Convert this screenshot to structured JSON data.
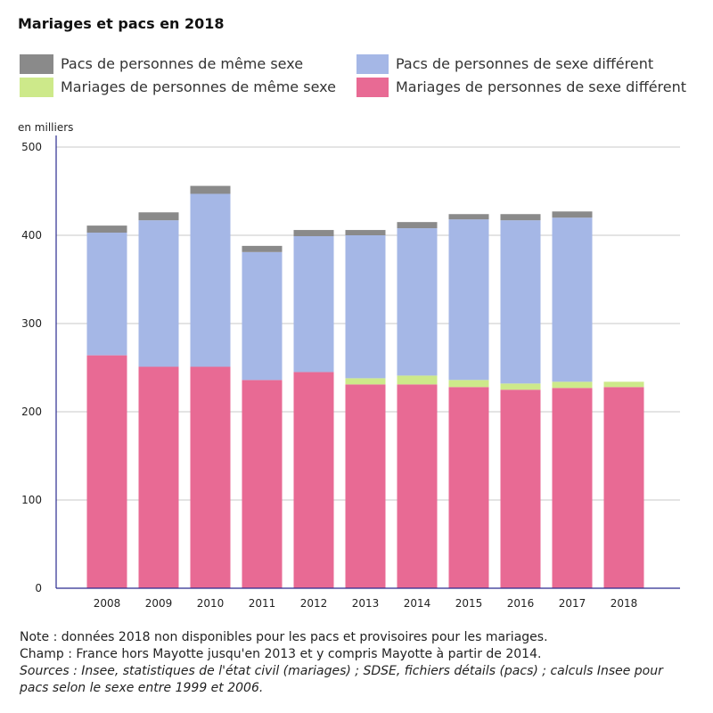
{
  "chart_data": {
    "type": "bar",
    "stacked": true,
    "title": "Mariages et pacs en 2018",
    "ylabel": "en milliers",
    "ylim": [
      0,
      500
    ],
    "yticks": [
      0,
      100,
      200,
      300,
      400,
      500
    ],
    "grid": true,
    "legend_position": "top",
    "categories": [
      "2008",
      "2009",
      "2010",
      "2011",
      "2012",
      "2013",
      "2014",
      "2015",
      "2016",
      "2017",
      "2018"
    ],
    "series": [
      {
        "name": "Mariages de personnes de sexe différent",
        "color": "#e86a94",
        "values": [
          264,
          251,
          251,
          236,
          245,
          231,
          231,
          228,
          225,
          227,
          228
        ]
      },
      {
        "name": "Mariages de personnes de même sexe",
        "color": "#cde98a",
        "values": [
          null,
          null,
          null,
          null,
          null,
          7,
          10,
          8,
          7,
          7,
          6
        ]
      },
      {
        "name": "Pacs de personnes de sexe différent",
        "color": "#a5b7e6",
        "values": [
          139,
          166,
          196,
          145,
          154,
          162,
          167,
          182,
          185,
          186,
          null
        ]
      },
      {
        "name": "Pacs de personnes de même sexe",
        "color": "#8a8a8a",
        "values": [
          8,
          9,
          9,
          7,
          7,
          6,
          7,
          6,
          7,
          7,
          null
        ]
      }
    ]
  },
  "notes": {
    "note": "Note : données 2018 non disponibles pour les pacs et provisoires pour les mariages.",
    "champ": "Champ : France hors Mayotte jusqu'en 2013 et y compris Mayotte à partir de 2014.",
    "sources": [
      "Sources : Insee, statistiques de l'état civil (mariages) ; SDSE, fichiers détails (pacs) ; calculs Insee pour",
      "pacs selon le sexe entre 1999 et 2006."
    ]
  }
}
